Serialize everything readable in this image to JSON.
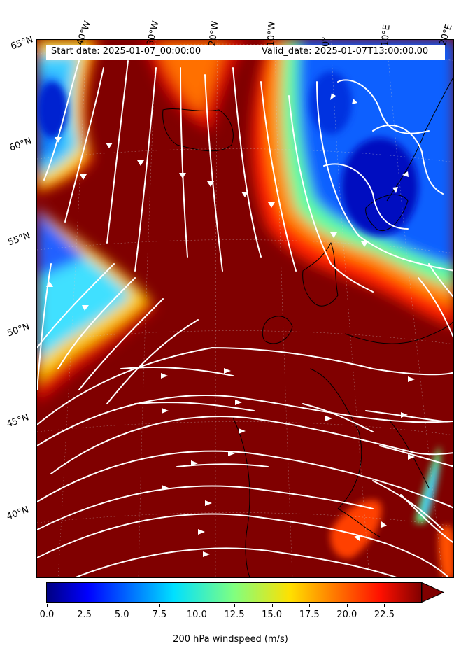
{
  "header": {
    "start_date": "Start date: 2025-01-07_00:00:00",
    "valid_date": "Valid_date: 2025-01-07T13:00:00.00"
  },
  "axes": {
    "lon_labels": [
      "40°W",
      "30°W",
      "20°W",
      "10°W",
      "0°",
      "10°E",
      "20°E"
    ],
    "lat_labels": [
      "65°N",
      "60°N",
      "55°N",
      "50°N",
      "45°N",
      "40°N"
    ]
  },
  "colorbar": {
    "ticks": [
      "0.0",
      "2.5",
      "5.0",
      "7.5",
      "10.0",
      "12.5",
      "15.0",
      "17.5",
      "20.0",
      "22.5"
    ],
    "label": "200 hPa windspeed (m/s)",
    "min": 0,
    "max": 25,
    "extend": "max",
    "colormap": "jet"
  },
  "colors": {
    "background_max": "#800000",
    "streamline": "#ffffff",
    "coastline": "#000000"
  }
}
